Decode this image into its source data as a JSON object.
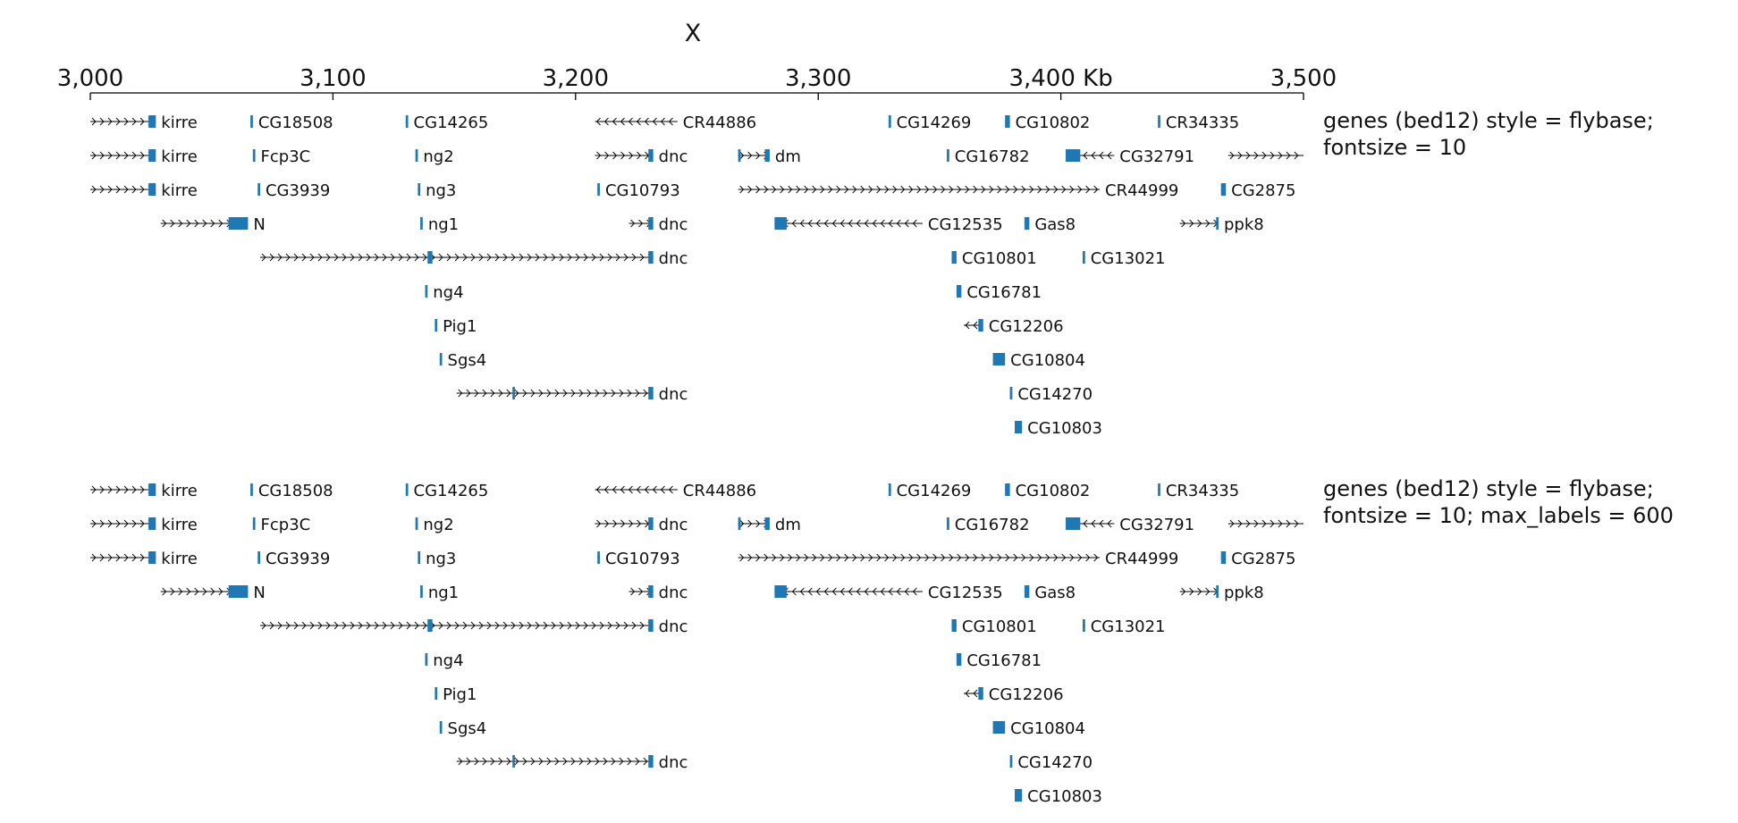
{
  "colors": {
    "gene": "#1f77b4",
    "intron": "#000000",
    "axis": "#000000"
  },
  "chromosome": "X",
  "axis": {
    "tick_values": [
      3000,
      3100,
      3200,
      3300,
      3400,
      3500
    ],
    "tick_labels": [
      "3,000",
      "3,100",
      "3,200",
      "3,300",
      "3,400 Kb",
      "3,500"
    ]
  },
  "tracks": [
    {
      "label": "genes (bed12) style = flybase;\nfontsize = 10",
      "genes": [
        {
          "name": "kirre",
          "row": 0,
          "start": 3000,
          "end": 3027,
          "strand": "+",
          "blocks": [
            [
              3024,
              3027
            ]
          ]
        },
        {
          "name": "CG18508",
          "row": 0,
          "start": 3066,
          "end": 3067,
          "strand": "+",
          "blocks": [
            [
              3066,
              3067
            ]
          ]
        },
        {
          "name": "CG14265",
          "row": 0,
          "start": 3130,
          "end": 3131,
          "strand": "+",
          "blocks": [
            [
              3130,
              3131
            ]
          ]
        },
        {
          "name": "CR44886",
          "row": 0,
          "start": 3208,
          "end": 3242,
          "strand": "-",
          "blocks": []
        },
        {
          "name": "CG14269",
          "row": 0,
          "start": 3329,
          "end": 3330,
          "strand": "+",
          "blocks": [
            [
              3329,
              3330
            ]
          ]
        },
        {
          "name": "CG10802",
          "row": 0,
          "start": 3377,
          "end": 3379,
          "strand": "+",
          "blocks": [
            [
              3377,
              3379
            ]
          ]
        },
        {
          "name": "CR34335",
          "row": 0,
          "start": 3440,
          "end": 3441,
          "strand": "+",
          "blocks": [
            [
              3440,
              3441
            ]
          ]
        },
        {
          "name": "kirre",
          "row": 1,
          "start": 3000,
          "end": 3027,
          "strand": "+",
          "blocks": [
            [
              3024,
              3027
            ]
          ]
        },
        {
          "name": "Fcp3C",
          "row": 1,
          "start": 3067,
          "end": 3068,
          "strand": "+",
          "blocks": [
            [
              3067,
              3068
            ]
          ]
        },
        {
          "name": "ng2",
          "row": 1,
          "start": 3134,
          "end": 3135,
          "strand": "+",
          "blocks": [
            [
              3134,
              3135
            ]
          ]
        },
        {
          "name": "dnc",
          "row": 1,
          "start": 3208,
          "end": 3232,
          "strand": "+",
          "blocks": [
            [
              3230,
              3232
            ]
          ]
        },
        {
          "name": "dm",
          "row": 1,
          "start": 3267,
          "end": 3280,
          "strand": "+",
          "blocks": [
            [
              3267,
              3268
            ],
            [
              3278,
              3280
            ]
          ]
        },
        {
          "name": "CG16782",
          "row": 1,
          "start": 3353,
          "end": 3354,
          "strand": "+",
          "blocks": [
            [
              3353,
              3354
            ]
          ]
        },
        {
          "name": "CG32791",
          "row": 1,
          "start": 3402,
          "end": 3422,
          "strand": "-",
          "blocks": [
            [
              3402,
              3408
            ]
          ]
        },
        {
          "name": "",
          "row": 1,
          "start": 3469,
          "end": 3500,
          "strand": "+",
          "blocks": []
        },
        {
          "name": "kirre",
          "row": 2,
          "start": 3000,
          "end": 3027,
          "strand": "+",
          "blocks": [
            [
              3024,
              3027
            ]
          ]
        },
        {
          "name": "CG3939",
          "row": 2,
          "start": 3069,
          "end": 3070,
          "strand": "+",
          "blocks": [
            [
              3069,
              3070
            ]
          ]
        },
        {
          "name": "ng3",
          "row": 2,
          "start": 3135,
          "end": 3136,
          "strand": "+",
          "blocks": [
            [
              3135,
              3136
            ]
          ]
        },
        {
          "name": "CG10793",
          "row": 2,
          "start": 3209,
          "end": 3210,
          "strand": "+",
          "blocks": [
            [
              3209,
              3210
            ]
          ]
        },
        {
          "name": "CR44999",
          "row": 2,
          "start": 3267,
          "end": 3416,
          "strand": "+",
          "blocks": []
        },
        {
          "name": "CG2875",
          "row": 2,
          "start": 3466,
          "end": 3468,
          "strand": "+",
          "blocks": [
            [
              3466,
              3468
            ]
          ]
        },
        {
          "name": "N",
          "row": 3,
          "start": 3029,
          "end": 3065,
          "strand": "+",
          "blocks": [
            [
              3057,
              3065
            ]
          ]
        },
        {
          "name": "ng1",
          "row": 3,
          "start": 3136,
          "end": 3137,
          "strand": "+",
          "blocks": [
            [
              3136,
              3137
            ]
          ]
        },
        {
          "name": "dnc",
          "row": 3,
          "start": 3222,
          "end": 3232,
          "strand": "+",
          "blocks": [
            [
              3230,
              3232
            ]
          ]
        },
        {
          "name": "CG12535",
          "row": 3,
          "start": 3282,
          "end": 3343,
          "strand": "-",
          "blocks": [
            [
              3282,
              3287
            ]
          ]
        },
        {
          "name": "Gas8",
          "row": 3,
          "start": 3385,
          "end": 3387,
          "strand": "+",
          "blocks": [
            [
              3385,
              3387
            ]
          ]
        },
        {
          "name": "ppk8",
          "row": 3,
          "start": 3449,
          "end": 3465,
          "strand": "+",
          "blocks": [
            [
              3464,
              3465
            ]
          ]
        },
        {
          "name": "dnc",
          "row": 4,
          "start": 3070,
          "end": 3232,
          "strand": "+",
          "blocks": [
            [
              3139,
              3141
            ],
            [
              3230,
              3232
            ]
          ]
        },
        {
          "name": "CG10801",
          "row": 4,
          "start": 3355,
          "end": 3357,
          "strand": "+",
          "blocks": [
            [
              3355,
              3357
            ]
          ]
        },
        {
          "name": "CG13021",
          "row": 4,
          "start": 3409,
          "end": 3410,
          "strand": "+",
          "blocks": [
            [
              3409,
              3410
            ]
          ]
        },
        {
          "name": "ng4",
          "row": 5,
          "start": 3138,
          "end": 3139,
          "strand": "+",
          "blocks": [
            [
              3138,
              3139
            ]
          ]
        },
        {
          "name": "CG16781",
          "row": 5,
          "start": 3357,
          "end": 3359,
          "strand": "+",
          "blocks": [
            [
              3357,
              3359
            ]
          ]
        },
        {
          "name": "Pig1",
          "row": 6,
          "start": 3142,
          "end": 3143,
          "strand": "+",
          "blocks": [
            [
              3142,
              3143
            ]
          ]
        },
        {
          "name": "CG12206",
          "row": 6,
          "start": 3360,
          "end": 3368,
          "strand": "-",
          "blocks": [
            [
              3366,
              3368
            ]
          ]
        },
        {
          "name": "Sgs4",
          "row": 7,
          "start": 3144,
          "end": 3145,
          "strand": "+",
          "blocks": [
            [
              3144,
              3145
            ]
          ]
        },
        {
          "name": "CG10804",
          "row": 7,
          "start": 3372,
          "end": 3377,
          "strand": "+",
          "blocks": [
            [
              3372,
              3377
            ]
          ]
        },
        {
          "name": "dnc",
          "row": 8,
          "start": 3151,
          "end": 3232,
          "strand": "+",
          "blocks": [
            [
              3174,
              3175
            ],
            [
              3230,
              3232
            ]
          ]
        },
        {
          "name": "CG14270",
          "row": 8,
          "start": 3379,
          "end": 3380,
          "strand": "+",
          "blocks": [
            [
              3379,
              3380
            ]
          ]
        },
        {
          "name": "CG10803",
          "row": 9,
          "start": 3381,
          "end": 3384,
          "strand": "+",
          "blocks": [
            [
              3381,
              3384
            ]
          ]
        }
      ]
    },
    {
      "label": "genes (bed12) style = flybase;\nfontsize = 10; max_labels = 600",
      "genes": [
        {
          "name": "kirre",
          "row": 0,
          "start": 3000,
          "end": 3027,
          "strand": "+",
          "blocks": [
            [
              3024,
              3027
            ]
          ]
        },
        {
          "name": "CG18508",
          "row": 0,
          "start": 3066,
          "end": 3067,
          "strand": "+",
          "blocks": [
            [
              3066,
              3067
            ]
          ]
        },
        {
          "name": "CG14265",
          "row": 0,
          "start": 3130,
          "end": 3131,
          "strand": "+",
          "blocks": [
            [
              3130,
              3131
            ]
          ]
        },
        {
          "name": "CR44886",
          "row": 0,
          "start": 3208,
          "end": 3242,
          "strand": "-",
          "blocks": []
        },
        {
          "name": "CG14269",
          "row": 0,
          "start": 3329,
          "end": 3330,
          "strand": "+",
          "blocks": [
            [
              3329,
              3330
            ]
          ]
        },
        {
          "name": "CG10802",
          "row": 0,
          "start": 3377,
          "end": 3379,
          "strand": "+",
          "blocks": [
            [
              3377,
              3379
            ]
          ]
        },
        {
          "name": "CR34335",
          "row": 0,
          "start": 3440,
          "end": 3441,
          "strand": "+",
          "blocks": [
            [
              3440,
              3441
            ]
          ]
        },
        {
          "name": "kirre",
          "row": 1,
          "start": 3000,
          "end": 3027,
          "strand": "+",
          "blocks": [
            [
              3024,
              3027
            ]
          ]
        },
        {
          "name": "Fcp3C",
          "row": 1,
          "start": 3067,
          "end": 3068,
          "strand": "+",
          "blocks": [
            [
              3067,
              3068
            ]
          ]
        },
        {
          "name": "ng2",
          "row": 1,
          "start": 3134,
          "end": 3135,
          "strand": "+",
          "blocks": [
            [
              3134,
              3135
            ]
          ]
        },
        {
          "name": "dnc",
          "row": 1,
          "start": 3208,
          "end": 3232,
          "strand": "+",
          "blocks": [
            [
              3230,
              3232
            ]
          ]
        },
        {
          "name": "dm",
          "row": 1,
          "start": 3267,
          "end": 3280,
          "strand": "+",
          "blocks": [
            [
              3267,
              3268
            ],
            [
              3278,
              3280
            ]
          ]
        },
        {
          "name": "CG16782",
          "row": 1,
          "start": 3353,
          "end": 3354,
          "strand": "+",
          "blocks": [
            [
              3353,
              3354
            ]
          ]
        },
        {
          "name": "CG32791",
          "row": 1,
          "start": 3402,
          "end": 3422,
          "strand": "-",
          "blocks": [
            [
              3402,
              3408
            ]
          ]
        },
        {
          "name": "",
          "row": 1,
          "start": 3469,
          "end": 3500,
          "strand": "+",
          "blocks": []
        },
        {
          "name": "kirre",
          "row": 2,
          "start": 3000,
          "end": 3027,
          "strand": "+",
          "blocks": [
            [
              3024,
              3027
            ]
          ]
        },
        {
          "name": "CG3939",
          "row": 2,
          "start": 3069,
          "end": 3070,
          "strand": "+",
          "blocks": [
            [
              3069,
              3070
            ]
          ]
        },
        {
          "name": "ng3",
          "row": 2,
          "start": 3135,
          "end": 3136,
          "strand": "+",
          "blocks": [
            [
              3135,
              3136
            ]
          ]
        },
        {
          "name": "CG10793",
          "row": 2,
          "start": 3209,
          "end": 3210,
          "strand": "+",
          "blocks": [
            [
              3209,
              3210
            ]
          ]
        },
        {
          "name": "CR44999",
          "row": 2,
          "start": 3267,
          "end": 3416,
          "strand": "+",
          "blocks": []
        },
        {
          "name": "CG2875",
          "row": 2,
          "start": 3466,
          "end": 3468,
          "strand": "+",
          "blocks": [
            [
              3466,
              3468
            ]
          ]
        },
        {
          "name": "N",
          "row": 3,
          "start": 3029,
          "end": 3065,
          "strand": "+",
          "blocks": [
            [
              3057,
              3065
            ]
          ]
        },
        {
          "name": "ng1",
          "row": 3,
          "start": 3136,
          "end": 3137,
          "strand": "+",
          "blocks": [
            [
              3136,
              3137
            ]
          ]
        },
        {
          "name": "dnc",
          "row": 3,
          "start": 3222,
          "end": 3232,
          "strand": "+",
          "blocks": [
            [
              3230,
              3232
            ]
          ]
        },
        {
          "name": "CG12535",
          "row": 3,
          "start": 3282,
          "end": 3343,
          "strand": "-",
          "blocks": [
            [
              3282,
              3287
            ]
          ]
        },
        {
          "name": "Gas8",
          "row": 3,
          "start": 3385,
          "end": 3387,
          "strand": "+",
          "blocks": [
            [
              3385,
              3387
            ]
          ]
        },
        {
          "name": "ppk8",
          "row": 3,
          "start": 3449,
          "end": 3465,
          "strand": "+",
          "blocks": [
            [
              3464,
              3465
            ]
          ]
        },
        {
          "name": "dnc",
          "row": 4,
          "start": 3070,
          "end": 3232,
          "strand": "+",
          "blocks": [
            [
              3139,
              3141
            ],
            [
              3230,
              3232
            ]
          ]
        },
        {
          "name": "CG10801",
          "row": 4,
          "start": 3355,
          "end": 3357,
          "strand": "+",
          "blocks": [
            [
              3355,
              3357
            ]
          ]
        },
        {
          "name": "CG13021",
          "row": 4,
          "start": 3409,
          "end": 3410,
          "strand": "+",
          "blocks": [
            [
              3409,
              3410
            ]
          ]
        },
        {
          "name": "ng4",
          "row": 5,
          "start": 3138,
          "end": 3139,
          "strand": "+",
          "blocks": [
            [
              3138,
              3139
            ]
          ]
        },
        {
          "name": "CG16781",
          "row": 5,
          "start": 3357,
          "end": 3359,
          "strand": "+",
          "blocks": [
            [
              3357,
              3359
            ]
          ]
        },
        {
          "name": "Pig1",
          "row": 6,
          "start": 3142,
          "end": 3143,
          "strand": "+",
          "blocks": [
            [
              3142,
              3143
            ]
          ]
        },
        {
          "name": "CG12206",
          "row": 6,
          "start": 3360,
          "end": 3368,
          "strand": "-",
          "blocks": [
            [
              3366,
              3368
            ]
          ]
        },
        {
          "name": "Sgs4",
          "row": 7,
          "start": 3144,
          "end": 3145,
          "strand": "+",
          "blocks": [
            [
              3144,
              3145
            ]
          ]
        },
        {
          "name": "CG10804",
          "row": 7,
          "start": 3372,
          "end": 3377,
          "strand": "+",
          "blocks": [
            [
              3372,
              3377
            ]
          ]
        },
        {
          "name": "dnc",
          "row": 8,
          "start": 3151,
          "end": 3232,
          "strand": "+",
          "blocks": [
            [
              3174,
              3175
            ],
            [
              3230,
              3232
            ]
          ]
        },
        {
          "name": "CG14270",
          "row": 8,
          "start": 3379,
          "end": 3380,
          "strand": "+",
          "blocks": [
            [
              3379,
              3380
            ]
          ]
        },
        {
          "name": "CG10803",
          "row": 9,
          "start": 3381,
          "end": 3384,
          "strand": "+",
          "blocks": [
            [
              3381,
              3384
            ]
          ]
        }
      ]
    }
  ]
}
